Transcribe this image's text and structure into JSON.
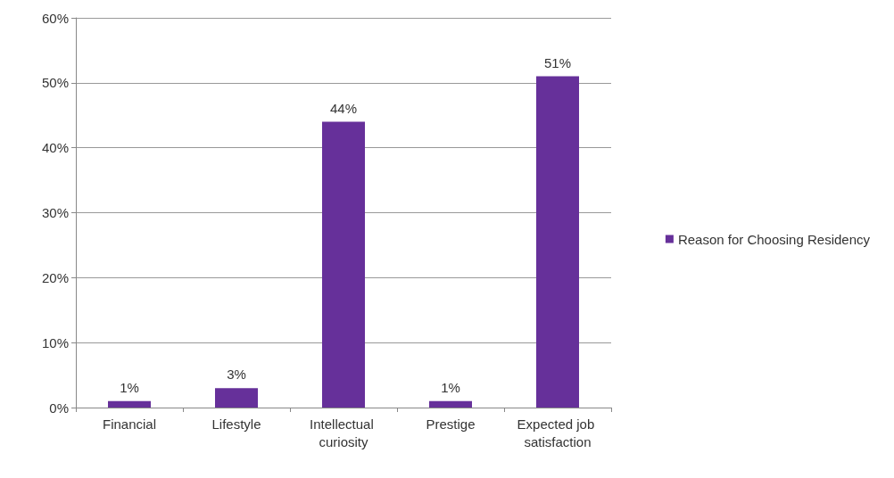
{
  "chart_data": {
    "type": "bar",
    "categories": [
      "Financial",
      "Lifestyle",
      "Intellectual curiosity",
      "Prestige",
      "Expected job satisfaction"
    ],
    "series": [
      {
        "name": "Reason for Choosing Residency",
        "color": "#66309a",
        "values": [
          1,
          3,
          44,
          1,
          51
        ],
        "value_labels": [
          "1%",
          "3%",
          "44%",
          "1%",
          "51%"
        ]
      }
    ],
    "ylim": [
      0,
      60
    ],
    "yticks": [
      {
        "value": 0,
        "label": "0%"
      },
      {
        "value": 10,
        "label": "10%"
      },
      {
        "value": 20,
        "label": "20%"
      },
      {
        "value": 30,
        "label": "30%"
      },
      {
        "value": 40,
        "label": "40%"
      },
      {
        "value": 50,
        "label": "50%"
      },
      {
        "value": 60,
        "label": "60%"
      }
    ],
    "grid": "y",
    "legend": "right"
  }
}
